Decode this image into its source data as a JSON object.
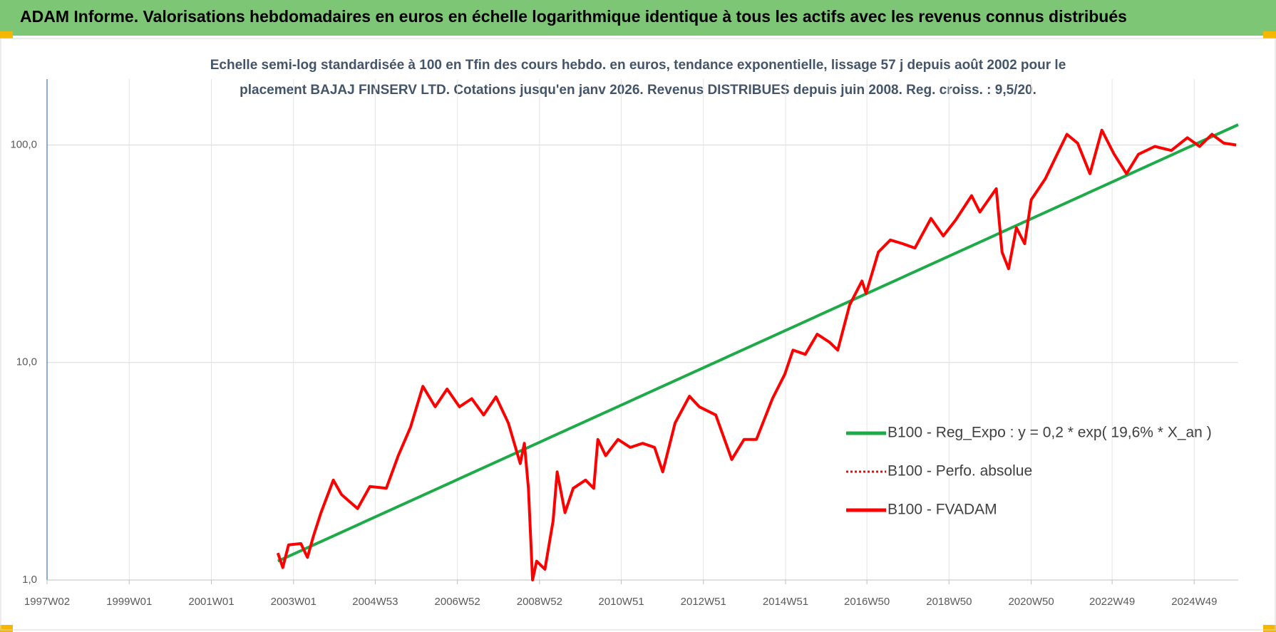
{
  "chart_data": {
    "type": "line",
    "title": "ADAM Informe. Valorisations hebdomadaires en euros en échelle logarithmique identique à tous les actifs avec les revenus connus distribués",
    "subtitle": [
      "Echelle semi-log standardisée à 100 en Tfin des cours hebdo. en euros, tendance exponentielle, lissage 57 j depuis août 2002 pour le",
      "placement BAJAJ FINSERV LTD. Cotations jusqu'en janv 2026. Revenus DISTRIBUES depuis juin 2008. Reg. croiss. : 9,5/20."
    ],
    "log_y": true,
    "grid": true,
    "legend": "right",
    "xlim": [
      1997.0,
      2026.0
    ],
    "xticks": [
      {
        "value": 1997.0,
        "label": "1997W02"
      },
      {
        "value": 1999.0,
        "label": "1999W01"
      },
      {
        "value": 2001.0,
        "label": "2001W01"
      },
      {
        "value": 2003.0,
        "label": "2003W01"
      },
      {
        "value": 2004.99,
        "label": "2004W53"
      },
      {
        "value": 2006.99,
        "label": "2006W52"
      },
      {
        "value": 2008.99,
        "label": "2008W52"
      },
      {
        "value": 2010.98,
        "label": "2010W51"
      },
      {
        "value": 2012.98,
        "label": "2012W51"
      },
      {
        "value": 2014.98,
        "label": "2014W51"
      },
      {
        "value": 2016.96,
        "label": "2016W50"
      },
      {
        "value": 2018.96,
        "label": "2018W50"
      },
      {
        "value": 2020.96,
        "label": "2020W50"
      },
      {
        "value": 2022.93,
        "label": "2022W49"
      },
      {
        "value": 2024.93,
        "label": "2024W49"
      }
    ],
    "ylim": [
      1,
      201
    ],
    "yticks": [
      {
        "value": 1,
        "label": "1,0"
      },
      {
        "value": 10,
        "label": "10,0"
      },
      {
        "value": 100,
        "label": "100,0"
      }
    ],
    "series": [
      {
        "name": "B100 - Reg_Expo : y = 0,2 * exp( 19,6% *  X_an )",
        "color": "#1faa4a",
        "style": "solid",
        "x": [
          2002.62,
          2026.0
        ],
        "values": [
          1.22,
          124
        ]
      },
      {
        "name": "B100 - Perfo. absolue",
        "color": "#ff0000",
        "style": "dotted",
        "x": [
          2002.62,
          2002.74,
          2002.88,
          2003.18,
          2003.34,
          2003.48,
          2003.67,
          2003.97,
          2004.17,
          2004.56,
          2004.86,
          2005.26,
          2005.55,
          2005.85,
          2006.15,
          2006.45,
          2006.74,
          2007.04,
          2007.34,
          2007.63,
          2007.93,
          2008.23,
          2008.52,
          2008.62,
          2008.72,
          2008.82,
          2008.92,
          2009.12,
          2009.32,
          2009.42,
          2009.61,
          2009.81,
          2010.11,
          2010.31,
          2010.41,
          2010.6,
          2010.9,
          2011.2,
          2011.5,
          2011.79,
          2011.99,
          2012.29,
          2012.64,
          2012.88,
          2013.28,
          2013.67,
          2013.97,
          2014.27,
          2014.66,
          2014.96,
          2015.16,
          2015.46,
          2015.75,
          2016.05,
          2016.25,
          2016.54,
          2016.84,
          2016.94,
          2017.24,
          2017.53,
          2017.83,
          2018.13,
          2018.52,
          2018.82,
          2019.12,
          2019.51,
          2019.71,
          2020.11,
          2020.25,
          2020.41,
          2020.6,
          2020.8,
          2020.96,
          2021.3,
          2021.59,
          2021.83,
          2022.09,
          2022.39,
          2022.68,
          2022.98,
          2023.28,
          2023.57,
          2023.97,
          2024.37,
          2024.76,
          2025.06,
          2025.36,
          2025.65,
          2025.95
        ],
        "values": [
          1.33,
          1.14,
          1.45,
          1.47,
          1.27,
          1.58,
          2.04,
          2.88,
          2.47,
          2.13,
          2.69,
          2.64,
          3.73,
          5.04,
          7.77,
          6.26,
          7.55,
          6.26,
          6.82,
          5.74,
          6.95,
          5.27,
          3.43,
          4.25,
          2.64,
          1.0,
          1.22,
          1.12,
          1.87,
          3.14,
          2.04,
          2.64,
          2.88,
          2.64,
          4.43,
          3.73,
          4.43,
          4.07,
          4.25,
          4.07,
          3.14,
          5.27,
          7.0,
          6.26,
          5.74,
          3.58,
          4.43,
          4.43,
          6.82,
          8.83,
          11.4,
          10.9,
          13.5,
          12.4,
          11.4,
          18.4,
          23.7,
          20.8,
          32.2,
          36.6,
          35.2,
          33.6,
          46.0,
          38.2,
          45.2,
          58.5,
          49.2,
          63.0,
          32.2,
          27.0,
          41.7,
          35.2,
          56.0,
          69.8,
          90.6,
          112,
          102,
          73.8,
          117,
          90.6,
          73.8,
          90.6,
          98.5,
          94.4,
          108,
          98.5,
          112,
          102,
          100
        ]
      },
      {
        "name": "B100 - FVADAM",
        "color": "#ff0000",
        "style": "solid",
        "x": [
          2002.62,
          2002.74,
          2002.88,
          2003.18,
          2003.34,
          2003.48,
          2003.67,
          2003.97,
          2004.17,
          2004.56,
          2004.86,
          2005.26,
          2005.55,
          2005.85,
          2006.15,
          2006.45,
          2006.74,
          2007.04,
          2007.34,
          2007.63,
          2007.93,
          2008.23,
          2008.52,
          2008.62,
          2008.72,
          2008.82,
          2008.92,
          2009.12,
          2009.32,
          2009.42,
          2009.61,
          2009.81,
          2010.11,
          2010.31,
          2010.41,
          2010.6,
          2010.9,
          2011.2,
          2011.5,
          2011.79,
          2011.99,
          2012.29,
          2012.64,
          2012.88,
          2013.28,
          2013.67,
          2013.97,
          2014.27,
          2014.66,
          2014.96,
          2015.16,
          2015.46,
          2015.75,
          2016.05,
          2016.25,
          2016.54,
          2016.84,
          2016.94,
          2017.24,
          2017.53,
          2017.83,
          2018.13,
          2018.52,
          2018.82,
          2019.12,
          2019.51,
          2019.71,
          2020.11,
          2020.25,
          2020.41,
          2020.6,
          2020.8,
          2020.96,
          2021.3,
          2021.59,
          2021.83,
          2022.09,
          2022.39,
          2022.68,
          2022.98,
          2023.28,
          2023.57,
          2023.97,
          2024.37,
          2024.76,
          2025.06,
          2025.36,
          2025.65,
          2025.95
        ],
        "values": [
          1.33,
          1.14,
          1.45,
          1.47,
          1.27,
          1.58,
          2.04,
          2.88,
          2.47,
          2.13,
          2.69,
          2.64,
          3.73,
          5.04,
          7.77,
          6.26,
          7.55,
          6.26,
          6.82,
          5.74,
          6.95,
          5.27,
          3.43,
          4.25,
          2.64,
          1.0,
          1.22,
          1.12,
          1.87,
          3.14,
          2.04,
          2.64,
          2.88,
          2.64,
          4.43,
          3.73,
          4.43,
          4.07,
          4.25,
          4.07,
          3.14,
          5.27,
          7.0,
          6.26,
          5.74,
          3.58,
          4.43,
          4.43,
          6.82,
          8.83,
          11.4,
          10.9,
          13.5,
          12.4,
          11.4,
          18.4,
          23.7,
          20.8,
          32.2,
          36.6,
          35.2,
          33.6,
          46.0,
          38.2,
          45.2,
          58.5,
          49.2,
          63.0,
          32.2,
          27.0,
          41.7,
          35.2,
          56.0,
          69.8,
          90.6,
          112,
          102,
          73.8,
          117,
          90.6,
          73.8,
          90.6,
          98.5,
          94.4,
          108,
          98.5,
          112,
          102,
          100
        ]
      }
    ]
  }
}
